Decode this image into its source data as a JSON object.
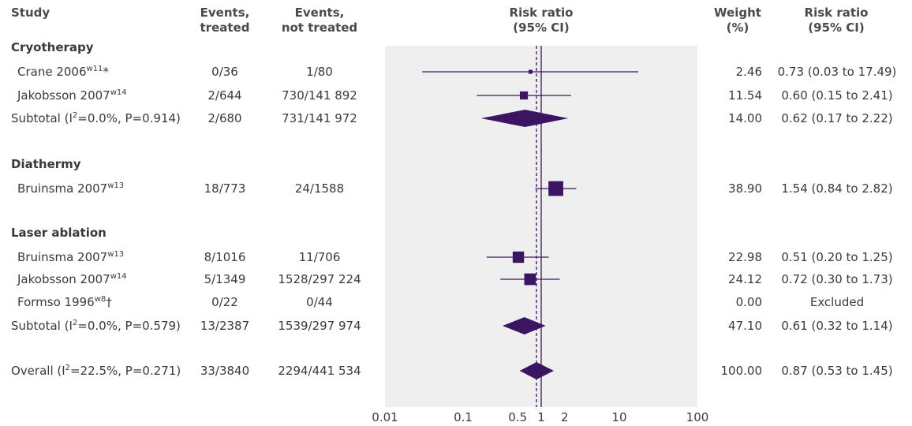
{
  "headers": {
    "study": "Study",
    "events_treated": [
      "Events,",
      "treated"
    ],
    "events_not_treated": [
      "Events,",
      "not treated"
    ],
    "risk_ratio_plot": [
      "Risk ratio",
      "(95% CI)"
    ],
    "weight": [
      "Weight",
      "(%)"
    ],
    "risk_ratio_col": [
      "Risk ratio",
      "(95% CI)"
    ]
  },
  "colors": {
    "marker": "#3b1462",
    "panel": "#efefef",
    "axis": "#3b1462",
    "text": "#3a3a3a"
  },
  "chart_data": {
    "type": "forest",
    "x_scale": "log",
    "xlim": [
      0.01,
      100
    ],
    "x_ticks": [
      0.01,
      0.1,
      0.5,
      1,
      2,
      10,
      100
    ],
    "x_tick_labels": [
      "0.01",
      "0.1",
      "0.5",
      "1",
      "2",
      "10",
      "100"
    ],
    "null_line": 1,
    "overall_estimate_line": 0.87,
    "rows": [
      {
        "kind": "section",
        "label": "Cryotherapy"
      },
      {
        "kind": "study",
        "label": "Crane 2006",
        "sup": "w11",
        "suffix": "*",
        "events_treated": "0/36",
        "events_not_treated": "1/80",
        "weight": "2.46",
        "rr_text": "0.73 (0.03 to 17.49)",
        "rr": 0.73,
        "lo": 0.03,
        "hi": 17.49,
        "w": 2.46
      },
      {
        "kind": "study",
        "label": "Jakobsson 2007",
        "sup": "w14",
        "suffix": "",
        "events_treated": "2/644",
        "events_not_treated": "730/141 892",
        "weight": "11.54",
        "rr_text": "0.60 (0.15 to 2.41)",
        "rr": 0.6,
        "lo": 0.15,
        "hi": 2.41,
        "w": 11.54
      },
      {
        "kind": "subtotal",
        "label_pre": "Subtotal (I",
        "label_sup": "2",
        "label_post": "=0.0%, P=0.914)",
        "events_treated": "2/680",
        "events_not_treated": "731/141 972",
        "weight": "14.00",
        "rr_text": "0.62 (0.17 to 2.22)",
        "rr": 0.62,
        "lo": 0.17,
        "hi": 2.22
      },
      {
        "kind": "section",
        "label": "Diathermy"
      },
      {
        "kind": "study",
        "label": "Bruinsma 2007",
        "sup": "w13",
        "suffix": "",
        "events_treated": "18/773",
        "events_not_treated": "24/1588",
        "weight": "38.90",
        "rr_text": "1.54 (0.84 to 2.82)",
        "rr": 1.54,
        "lo": 0.84,
        "hi": 2.82,
        "w": 38.9
      },
      {
        "kind": "section",
        "label": "Laser ablation"
      },
      {
        "kind": "study",
        "label": "Bruinsma 2007",
        "sup": "w13",
        "suffix": "",
        "events_treated": "8/1016",
        "events_not_treated": "11/706",
        "weight": "22.98",
        "rr_text": "0.51 (0.20 to 1.25)",
        "rr": 0.51,
        "lo": 0.2,
        "hi": 1.25,
        "w": 22.98
      },
      {
        "kind": "study",
        "label": "Jakobsson 2007",
        "sup": "w14",
        "suffix": "",
        "events_treated": "5/1349",
        "events_not_treated": "1528/297 224",
        "weight": "24.12",
        "rr_text": "0.72 (0.30 to 1.73)",
        "rr": 0.72,
        "lo": 0.3,
        "hi": 1.73,
        "w": 24.12
      },
      {
        "kind": "study",
        "label": "Formso 1996",
        "sup": "w8",
        "suffix": "†",
        "events_treated": "0/22",
        "events_not_treated": "0/44",
        "weight": "0.00",
        "rr_text": "Excluded",
        "rr": null,
        "lo": null,
        "hi": null,
        "w": 0
      },
      {
        "kind": "subtotal",
        "label_pre": "Subtotal (I",
        "label_sup": "2",
        "label_post": "=0.0%, P=0.579)",
        "events_treated": "13/2387",
        "events_not_treated": "1539/297 974",
        "weight": "47.10",
        "rr_text": "0.61 (0.32 to 1.14)",
        "rr": 0.61,
        "lo": 0.32,
        "hi": 1.14
      },
      {
        "kind": "overall",
        "label_pre": "Overall (I",
        "label_sup": "2",
        "label_post": "=22.5%, P=0.271)",
        "events_treated": "33/3840",
        "events_not_treated": "2294/441 534",
        "weight": "100.00",
        "rr_text": "0.87 (0.53 to 1.45)",
        "rr": 0.87,
        "lo": 0.53,
        "hi": 1.45
      }
    ]
  }
}
